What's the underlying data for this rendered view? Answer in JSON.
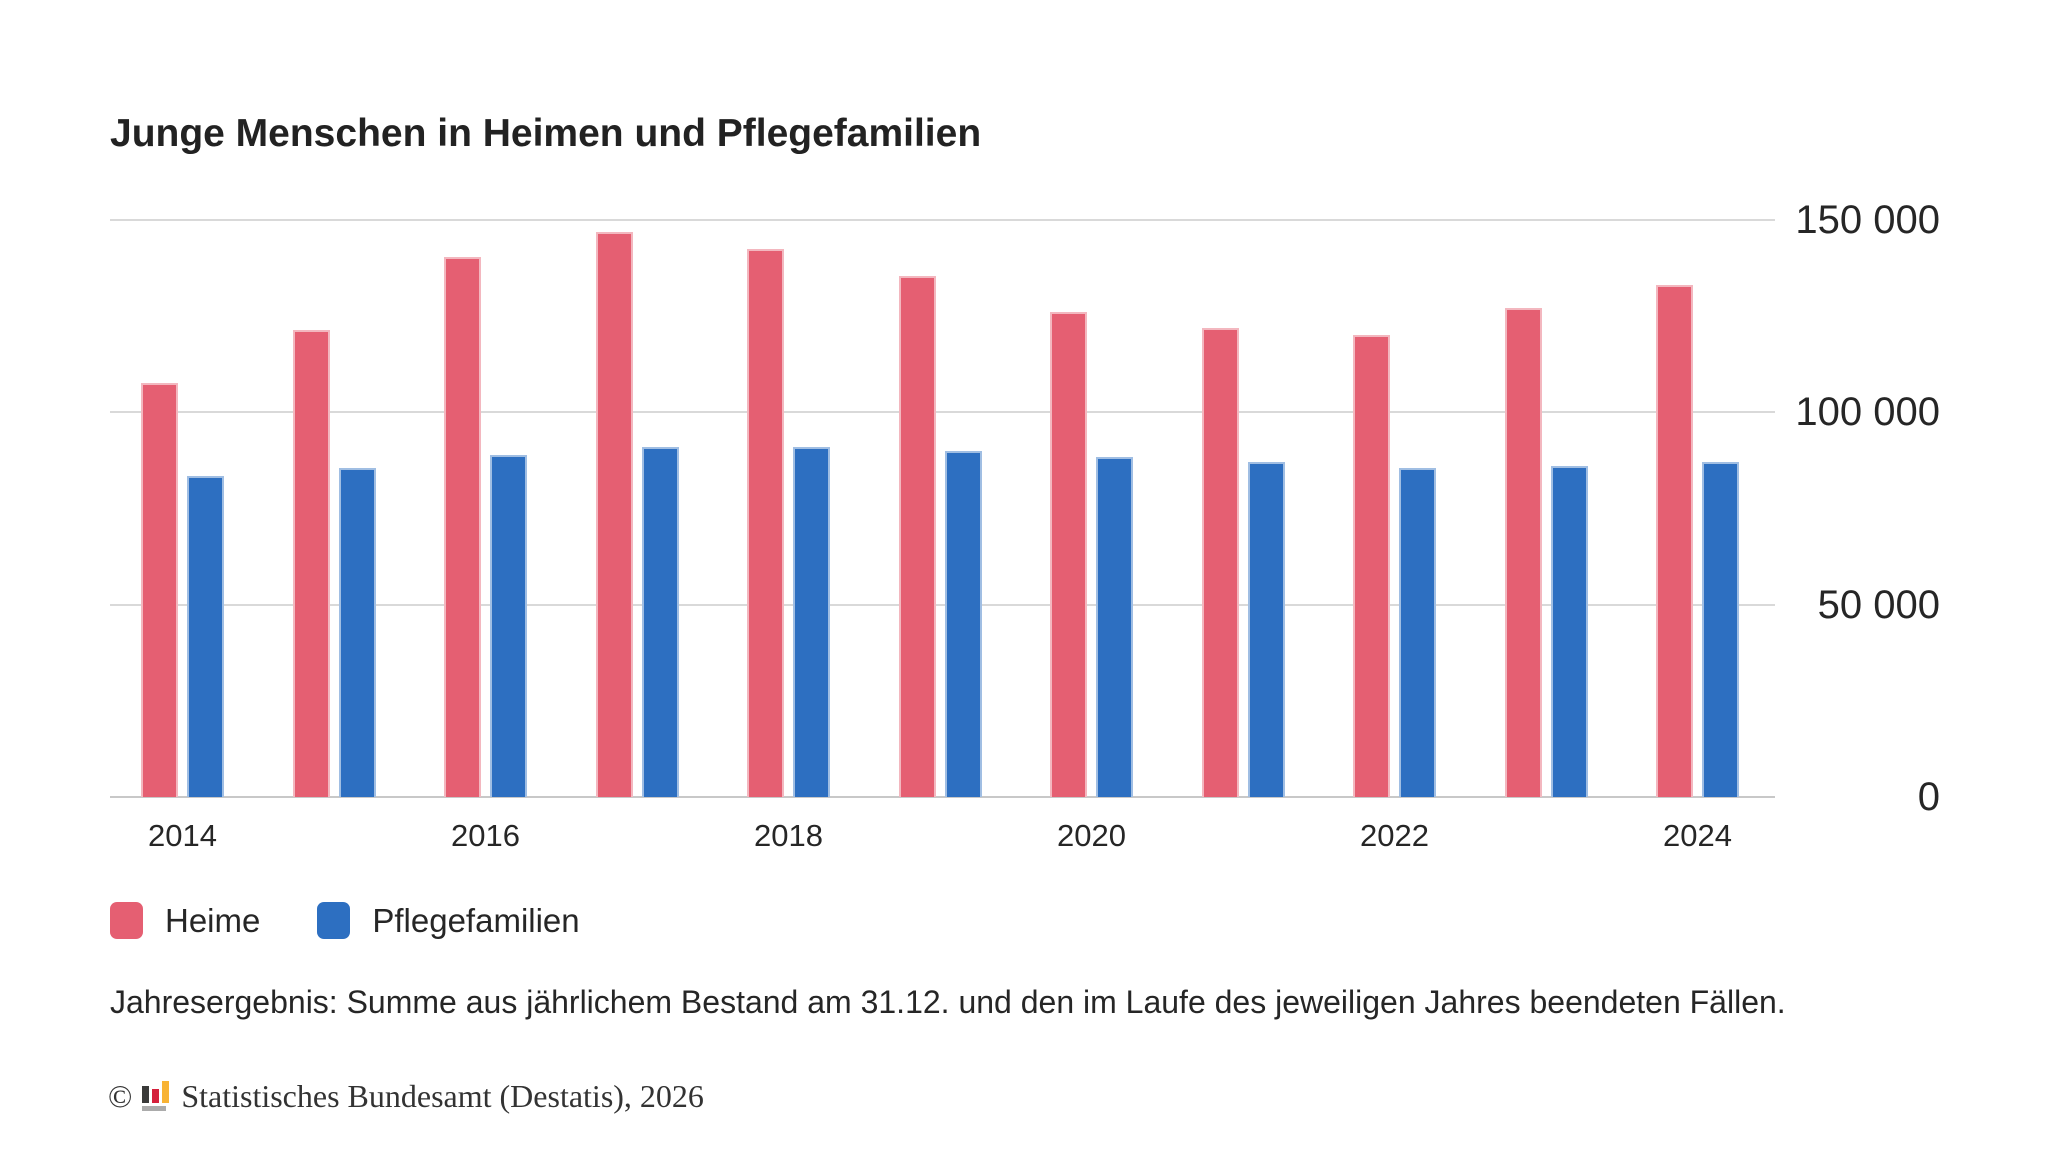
{
  "title": "Junge Menschen in Heimen und Pflegefamilien",
  "colors": {
    "heime": "#e55f72",
    "pflegefamilien": "#2d6fc1",
    "gridline": "#d9d9d9",
    "axis_line": "#c8c8c8",
    "text": "#262626"
  },
  "chart_data": {
    "type": "bar",
    "title": "Junge Menschen in Heimen und Pflegefamilien",
    "categories": [
      2014,
      2015,
      2016,
      2017,
      2018,
      2019,
      2020,
      2021,
      2022,
      2023,
      2024
    ],
    "series": [
      {
        "name": "Heime",
        "color": "#e55f72",
        "values": [
          107500,
          121500,
          140500,
          147000,
          142500,
          135500,
          126000,
          122000,
          120000,
          127000,
          133000
        ]
      },
      {
        "name": "Pflegefamilien",
        "color": "#2d6fc1",
        "values": [
          83500,
          85500,
          89000,
          91000,
          91000,
          90000,
          88500,
          87000,
          85500,
          86000,
          87000
        ]
      }
    ],
    "ylim": [
      0,
      150000
    ],
    "xlabel": "",
    "ylabel": "",
    "grid": "horizontal",
    "legend_position": "bottom-left",
    "y_axis_side": "right",
    "y_ticks": [
      {
        "label": "150 000",
        "value": 150000
      },
      {
        "label": "100 000",
        "value": 100000
      },
      {
        "label": "50 000",
        "value": 50000
      },
      {
        "label": "0",
        "value": 0
      }
    ],
    "x_tick_labels": [
      "2014",
      "2016",
      "2018",
      "2020",
      "2022",
      "2024"
    ]
  },
  "legend": {
    "items": [
      {
        "label": "Heime",
        "color": "#e55f72"
      },
      {
        "label": "Pflegefamilien",
        "color": "#2d6fc1"
      }
    ]
  },
  "footnote": "Jahresergebnis: Summe aus jährlichem Bestand am 31.12. und den im Laufe des jeweiligen Jahres beendeten Fällen.",
  "copyright": {
    "symbol": "©",
    "logo": "destatis-bars-logo",
    "text": "Statistisches Bundesamt (Destatis), 2026"
  }
}
